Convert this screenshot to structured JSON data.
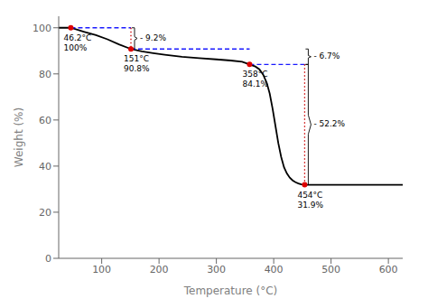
{
  "chart_data": {
    "type": "line",
    "xlabel": "Temperature (°C)",
    "ylabel": "Weight (%)",
    "xlim": [
      25,
      625
    ],
    "ylim": [
      0,
      105
    ],
    "xticks": [
      100,
      200,
      300,
      400,
      500,
      600
    ],
    "yticks": [
      0,
      20,
      40,
      60,
      80,
      100
    ],
    "grid": false,
    "x": [
      25,
      46.2,
      70,
      90,
      110,
      130,
      151,
      170,
      190,
      210,
      240,
      270,
      300,
      325,
      345,
      358,
      368,
      375,
      382,
      388,
      393,
      398,
      403,
      408,
      413,
      418,
      423,
      428,
      433,
      438,
      443,
      448,
      452,
      454,
      460,
      480,
      520,
      570,
      625
    ],
    "values": [
      100,
      100,
      98.2,
      96.8,
      95.0,
      92.8,
      90.8,
      89.8,
      89.0,
      88.3,
      87.4,
      86.8,
      86.3,
      85.8,
      85.3,
      84.1,
      83.2,
      82.0,
      79.5,
      76.0,
      71.5,
      65.0,
      57.5,
      50.0,
      44.0,
      39.5,
      36.8,
      35.0,
      33.8,
      33.0,
      32.5,
      32.1,
      31.95,
      31.9,
      31.9,
      31.9,
      31.9,
      31.9,
      31.9
    ],
    "color": "#000000",
    "points": {
      "x": [
        46.2,
        151.0,
        358.0,
        454.0
      ],
      "values": [
        100.0,
        90.8,
        84.1,
        31.9
      ],
      "value_labels": [
        [
          "46.2°C",
          "100%"
        ],
        [
          "151°C",
          "90.8%"
        ],
        [
          "358°C",
          "84.1%"
        ],
        [
          "454°C",
          "31.9%"
        ]
      ],
      "color": "#dd0000",
      "marker": "circle"
    },
    "dashed_lines": {
      "color": "#1a1aff",
      "line_style": "dashed",
      "segments": [
        {
          "x": [
            46.2,
            151
          ],
          "y": [
            100,
            100
          ]
        },
        {
          "x": [
            151,
            358
          ],
          "y": [
            90.8,
            90.8
          ]
        },
        {
          "x": [
            358,
            454
          ],
          "y": [
            84.1,
            84.1
          ]
        }
      ]
    },
    "dotted_lines": {
      "color": "#cc0000",
      "line_style": "dotted",
      "segments": [
        {
          "x": [
            151,
            151
          ],
          "y": [
            100,
            90.8
          ]
        },
        {
          "x": [
            454,
            454
          ],
          "y": [
            84.1,
            31.9
          ]
        }
      ]
    },
    "brackets": {
      "color": "#000000",
      "items": [
        {
          "x": 151,
          "y": [
            100,
            90.8
          ],
          "label": "- 9.2%"
        },
        {
          "x": 454,
          "y": [
            90.8,
            84.1
          ],
          "label": "- 6.7%"
        },
        {
          "x": 454,
          "y": [
            84.1,
            31.9
          ],
          "label": "- 52.2%"
        }
      ]
    }
  }
}
